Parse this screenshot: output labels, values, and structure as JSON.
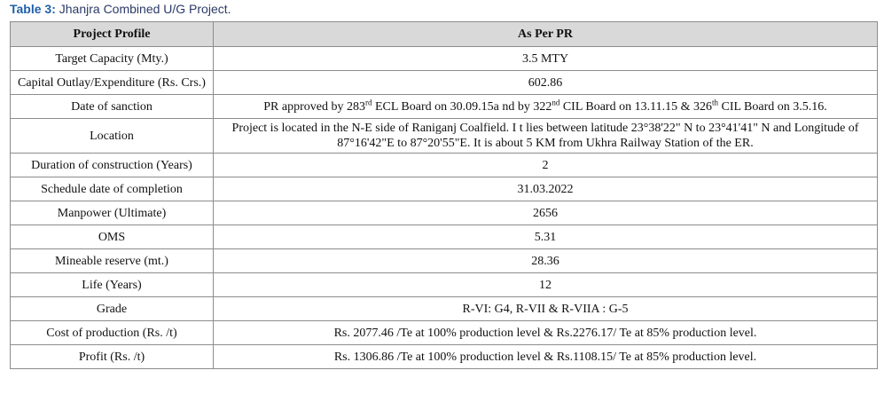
{
  "title": {
    "label": "Table 3:",
    "text": " Jhanjra Combined U/G Project."
  },
  "table": {
    "header": [
      "Project Profile",
      "As Per PR"
    ],
    "rows": [
      [
        "Target Capacity (Mty.)",
        "3.5 MTY"
      ],
      [
        "Capital Outlay/Expenditure (Rs. Crs.)",
        "602.86"
      ],
      [
        "Date of sanction",
        [
          "PR approved by 283",
          "rd",
          " ECL Board on 30.09.15a nd by 322",
          "nd",
          " CIL Board on 13.11.15 & 326",
          "th",
          " CIL Board on 3.5.16."
        ]
      ],
      [
        "Location",
        "Project is located in the N-E side of Raniganj Coalfield. I t lies between latitude 23°38'22\" N to 23°41'41\" N and Longitude of 87°16'42\"E to 87°20'55\"E. It is about 5 KM from Ukhra Railway Station of the ER."
      ],
      [
        "Duration of construction (Years)",
        "2"
      ],
      [
        "Schedule date of completion",
        "31.03.2022"
      ],
      [
        "Manpower (Ultimate)",
        "2656"
      ],
      [
        "OMS",
        "5.31"
      ],
      [
        "Mineable reserve (mt.)",
        "28.36"
      ],
      [
        "Life (Years)",
        "12"
      ],
      [
        "Grade",
        "R-VI: G4, R-VII & R-VIIA : G-5"
      ],
      [
        "Cost of production (Rs. /t)",
        "Rs. 2077.46 /Te at 100% production level & Rs.2276.17/ Te at 85% production level."
      ],
      [
        "Profit (Rs. /t)",
        "Rs. 1306.86 /Te at 100% production level & Rs.1108.15/ Te at 85% production level."
      ]
    ]
  }
}
